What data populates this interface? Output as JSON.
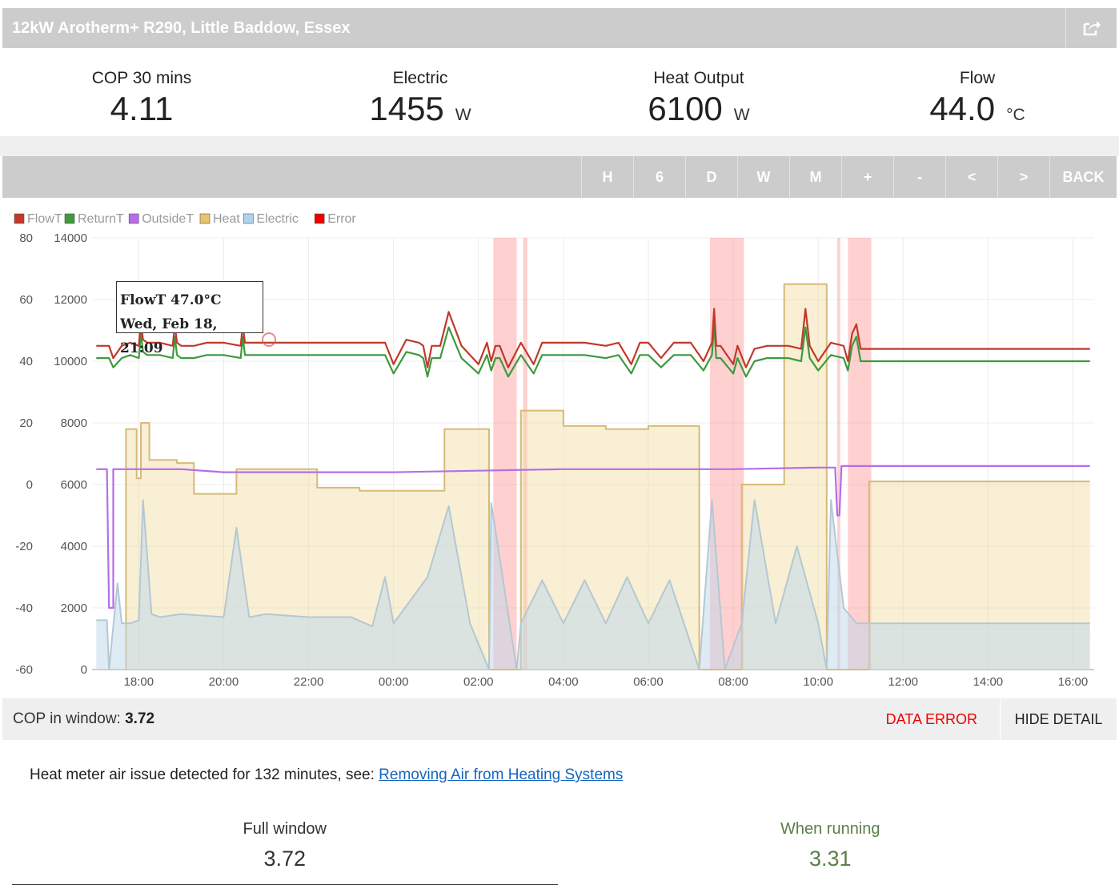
{
  "header": {
    "title": "12kW Arotherm+ R290, Little Baddow, Essex",
    "share_icon": "share-icon"
  },
  "stats": [
    {
      "label": "COP 30 mins",
      "value": "4.11",
      "unit": ""
    },
    {
      "label": "Electric",
      "value": "1455",
      "unit": "W"
    },
    {
      "label": "Heat Output",
      "value": "6100",
      "unit": "W"
    },
    {
      "label": "Flow",
      "value": "44.0",
      "unit": "°C"
    }
  ],
  "toolbar": {
    "buttons": [
      "H",
      "6",
      "D",
      "W",
      "M",
      "+",
      "-",
      "<",
      ">",
      "BACK"
    ]
  },
  "legend": [
    {
      "name": "FlowT",
      "color": "#c0392b"
    },
    {
      "name": "ReturnT",
      "color": "#3d9a3d"
    },
    {
      "name": "OutsideT",
      "color": "#b56ee8"
    },
    {
      "name": "Heat",
      "color": "#e8c56a"
    },
    {
      "name": "Electric",
      "color": "#aed3f0"
    },
    {
      "name": "Error",
      "color": "#ee0000"
    }
  ],
  "tooltip": {
    "line1": "FlowT 47.0°C",
    "line2": "Wed, Feb 18, 21:09"
  },
  "chart_data": {
    "type": "line",
    "x_unit": "hours since 17:00",
    "xlim": [
      -0.1,
      23.5
    ],
    "x_tick_labels": [
      "18:00",
      "20:00",
      "22:00",
      "00:00",
      "02:00",
      "04:00",
      "06:00",
      "08:00",
      "10:00",
      "12:00",
      "14:00",
      "16:00"
    ],
    "x_ticks": [
      1,
      3,
      5,
      7,
      9,
      11,
      13,
      15,
      17,
      19,
      21,
      23
    ],
    "y_left": {
      "ylim": [
        -60,
        80
      ],
      "ticks": [
        80,
        60,
        40,
        20,
        0,
        -20,
        -40,
        -60
      ]
    },
    "y_right": {
      "ylim": [
        0,
        14000
      ],
      "ticks": [
        14000,
        12000,
        10000,
        8000,
        6000,
        4000,
        2000,
        0
      ]
    },
    "error_bands": [
      [
        9.35,
        9.9
      ],
      [
        10.05,
        10.15
      ],
      [
        14.45,
        15.25
      ],
      [
        17.45,
        17.52
      ],
      [
        17.7,
        18.25
      ]
    ],
    "series": [
      {
        "name": "FlowT",
        "axis": "left",
        "x": [
          0,
          0.3,
          0.4,
          0.6,
          0.8,
          1.0,
          1.05,
          1.1,
          1.2,
          1.5,
          1.8,
          1.85,
          1.9,
          2.0,
          2.3,
          2.6,
          3.0,
          3.4,
          3.45,
          3.5,
          3.6,
          4.0,
          5.0,
          6.0,
          6.5,
          6.8,
          7.0,
          7.3,
          7.6,
          7.7,
          7.8,
          7.9,
          8.1,
          8.3,
          8.6,
          9.0,
          9.2,
          9.3,
          9.4,
          9.5,
          9.7,
          10.0,
          10.3,
          10.5,
          10.8,
          11.0,
          11.5,
          12.0,
          12.3,
          12.6,
          12.8,
          13.0,
          13.3,
          13.6,
          14.0,
          14.3,
          14.5,
          14.55,
          14.6,
          14.7,
          15.0,
          15.1,
          15.3,
          15.5,
          15.8,
          16.0,
          16.3,
          16.6,
          16.7,
          16.8,
          17.0,
          17.3,
          17.6,
          17.7,
          17.8,
          17.9,
          18.0,
          18.2,
          19.0,
          20.0,
          21.0,
          22.0,
          23.0,
          23.4
        ],
        "y": [
          45,
          45,
          41,
          45,
          46,
          45,
          53,
          47,
          46,
          46,
          45,
          52,
          46,
          45,
          45,
          46,
          46,
          45,
          52,
          46,
          46,
          46,
          46,
          46,
          46,
          46,
          39,
          47,
          46,
          45,
          38,
          45,
          45,
          56,
          45,
          39,
          46,
          40,
          45,
          45,
          38,
          46,
          39,
          46,
          46,
          46,
          46,
          45,
          46,
          39,
          46,
          46,
          41,
          46,
          46,
          40,
          46,
          57,
          45,
          45,
          39,
          45,
          38,
          44,
          45,
          45,
          45,
          44,
          57,
          45,
          40,
          46,
          45,
          40,
          49,
          52,
          44,
          44,
          44,
          44,
          44,
          44,
          44,
          44
        ],
        "color": "#c0392b"
      },
      {
        "name": "ReturnT",
        "axis": "left",
        "x": [
          0,
          0.3,
          0.4,
          0.6,
          0.8,
          1.0,
          1.05,
          1.1,
          1.2,
          1.5,
          1.8,
          1.85,
          1.9,
          2.0,
          2.3,
          2.6,
          3.0,
          3.4,
          3.45,
          3.5,
          3.6,
          4.0,
          5.0,
          6.0,
          6.5,
          6.8,
          7.0,
          7.3,
          7.6,
          7.7,
          7.8,
          7.9,
          8.1,
          8.3,
          8.6,
          9.0,
          9.2,
          9.3,
          9.4,
          9.5,
          9.7,
          10.0,
          10.3,
          10.5,
          10.8,
          11.0,
          11.5,
          12.0,
          12.3,
          12.6,
          12.8,
          13.0,
          13.3,
          13.6,
          14.0,
          14.3,
          14.5,
          14.55,
          14.6,
          14.7,
          15.0,
          15.1,
          15.3,
          15.5,
          15.8,
          16.0,
          16.3,
          16.6,
          16.7,
          16.8,
          17.0,
          17.3,
          17.6,
          17.7,
          17.8,
          17.9,
          18.0,
          18.2,
          19.0,
          20.0,
          21.0,
          22.0,
          23.0,
          23.4
        ],
        "y": [
          41,
          41,
          38,
          41,
          42,
          41,
          49,
          43,
          42,
          42,
          41,
          48,
          42,
          41,
          41,
          42,
          42,
          41,
          48,
          42,
          42,
          42,
          42,
          42,
          42,
          42,
          36,
          43,
          42,
          41,
          35,
          41,
          41,
          51,
          41,
          36,
          42,
          37,
          41,
          41,
          35,
          42,
          36,
          42,
          42,
          42,
          42,
          41,
          42,
          36,
          42,
          42,
          38,
          42,
          42,
          37,
          42,
          52,
          41,
          41,
          36,
          41,
          35,
          40,
          41,
          41,
          41,
          40,
          51,
          41,
          37,
          42,
          41,
          37,
          45,
          48,
          40,
          40,
          40,
          40,
          40,
          40,
          40,
          40
        ],
        "color": "#3d9a3d"
      },
      {
        "name": "OutsideT",
        "axis": "left",
        "x": [
          0,
          0.25,
          0.3,
          0.4,
          0.4,
          0.6,
          1.0,
          2.0,
          3.0,
          5.0,
          7.0,
          9.0,
          11.0,
          13.0,
          15.0,
          17.0,
          17.4,
          17.45,
          17.5,
          17.55,
          18.0,
          20.0,
          23.4
        ],
        "y": [
          5,
          5,
          -40,
          -40,
          5,
          5,
          5,
          5,
          4,
          4,
          4,
          4.5,
          5,
          5,
          5,
          5.5,
          5.5,
          -10,
          -10,
          6,
          6,
          6,
          6
        ],
        "color": "#b56ee8"
      },
      {
        "name": "Heat",
        "axis": "right",
        "x": [
          0.7,
          0.7,
          0.95,
          0.95,
          1.05,
          1.05,
          1.25,
          1.25,
          1.9,
          1.9,
          2.3,
          2.3,
          3.3,
          3.3,
          5.2,
          5.2,
          6.2,
          6.2,
          8.2,
          8.2,
          9.25,
          9.25,
          9.9,
          9.9,
          10.0,
          10.0,
          11.0,
          11.0,
          12.0,
          12.0,
          13.0,
          13.0,
          14.2,
          14.2,
          15.2,
          15.2,
          16.2,
          16.2,
          17.2,
          17.2,
          18.2,
          18.2,
          23.4
        ],
        "y": [
          0,
          7800,
          7800,
          6200,
          6200,
          8000,
          8000,
          6800,
          6800,
          6700,
          6700,
          5700,
          5700,
          6500,
          6500,
          5900,
          5900,
          5800,
          5800,
          7800,
          7800,
          0,
          0,
          0,
          0,
          8400,
          8400,
          7900,
          7900,
          7800,
          7800,
          7900,
          7900,
          0,
          0,
          6000,
          6000,
          12500,
          12500,
          0,
          0,
          6100,
          6100
        ],
        "color": "#e8c56a"
      },
      {
        "name": "Electric",
        "axis": "right",
        "x": [
          0,
          0.25,
          0.3,
          0.5,
          0.6,
          0.8,
          1.0,
          1.1,
          1.3,
          1.5,
          2.0,
          3.0,
          3.3,
          3.6,
          4.0,
          5.0,
          6.0,
          6.5,
          6.8,
          7.0,
          7.8,
          8.3,
          8.8,
          9.25,
          9.3,
          9.9,
          10.0,
          10.5,
          11.0,
          11.5,
          12.0,
          12.5,
          13.0,
          13.5,
          14.2,
          14.5,
          14.8,
          15.2,
          15.5,
          16.0,
          16.5,
          17.0,
          17.2,
          17.3,
          17.6,
          17.9,
          18.2,
          19.0,
          20.0,
          21.0,
          22.0,
          23.0,
          23.4
        ],
        "y": [
          1600,
          1600,
          0,
          2800,
          1500,
          1500,
          1600,
          5500,
          1800,
          1700,
          1800,
          1700,
          4600,
          1700,
          1800,
          1700,
          1700,
          1400,
          3000,
          1500,
          3000,
          5300,
          1500,
          0,
          5400,
          0,
          1500,
          2900,
          1500,
          2900,
          1500,
          3000,
          1500,
          2900,
          0,
          5500,
          0,
          1500,
          5500,
          1500,
          4000,
          1500,
          0,
          5500,
          2000,
          1500,
          1500,
          1500,
          1500,
          1500,
          1500,
          1500,
          1500
        ],
        "color": "#aed3f0"
      }
    ]
  },
  "footer": {
    "cop_label": "COP in window:",
    "cop_value": "3.72",
    "data_error_label": "DATA ERROR",
    "hide_detail_label": "HIDE DETAIL"
  },
  "notice": {
    "text": "Heat meter air issue detected for 132 minutes, see: ",
    "link_text": "Removing Air from Heating Systems"
  },
  "summary": {
    "full_window_label": "Full window",
    "full_window_value": "3.72",
    "when_running_label": "When running",
    "when_running_value": "3.31"
  }
}
